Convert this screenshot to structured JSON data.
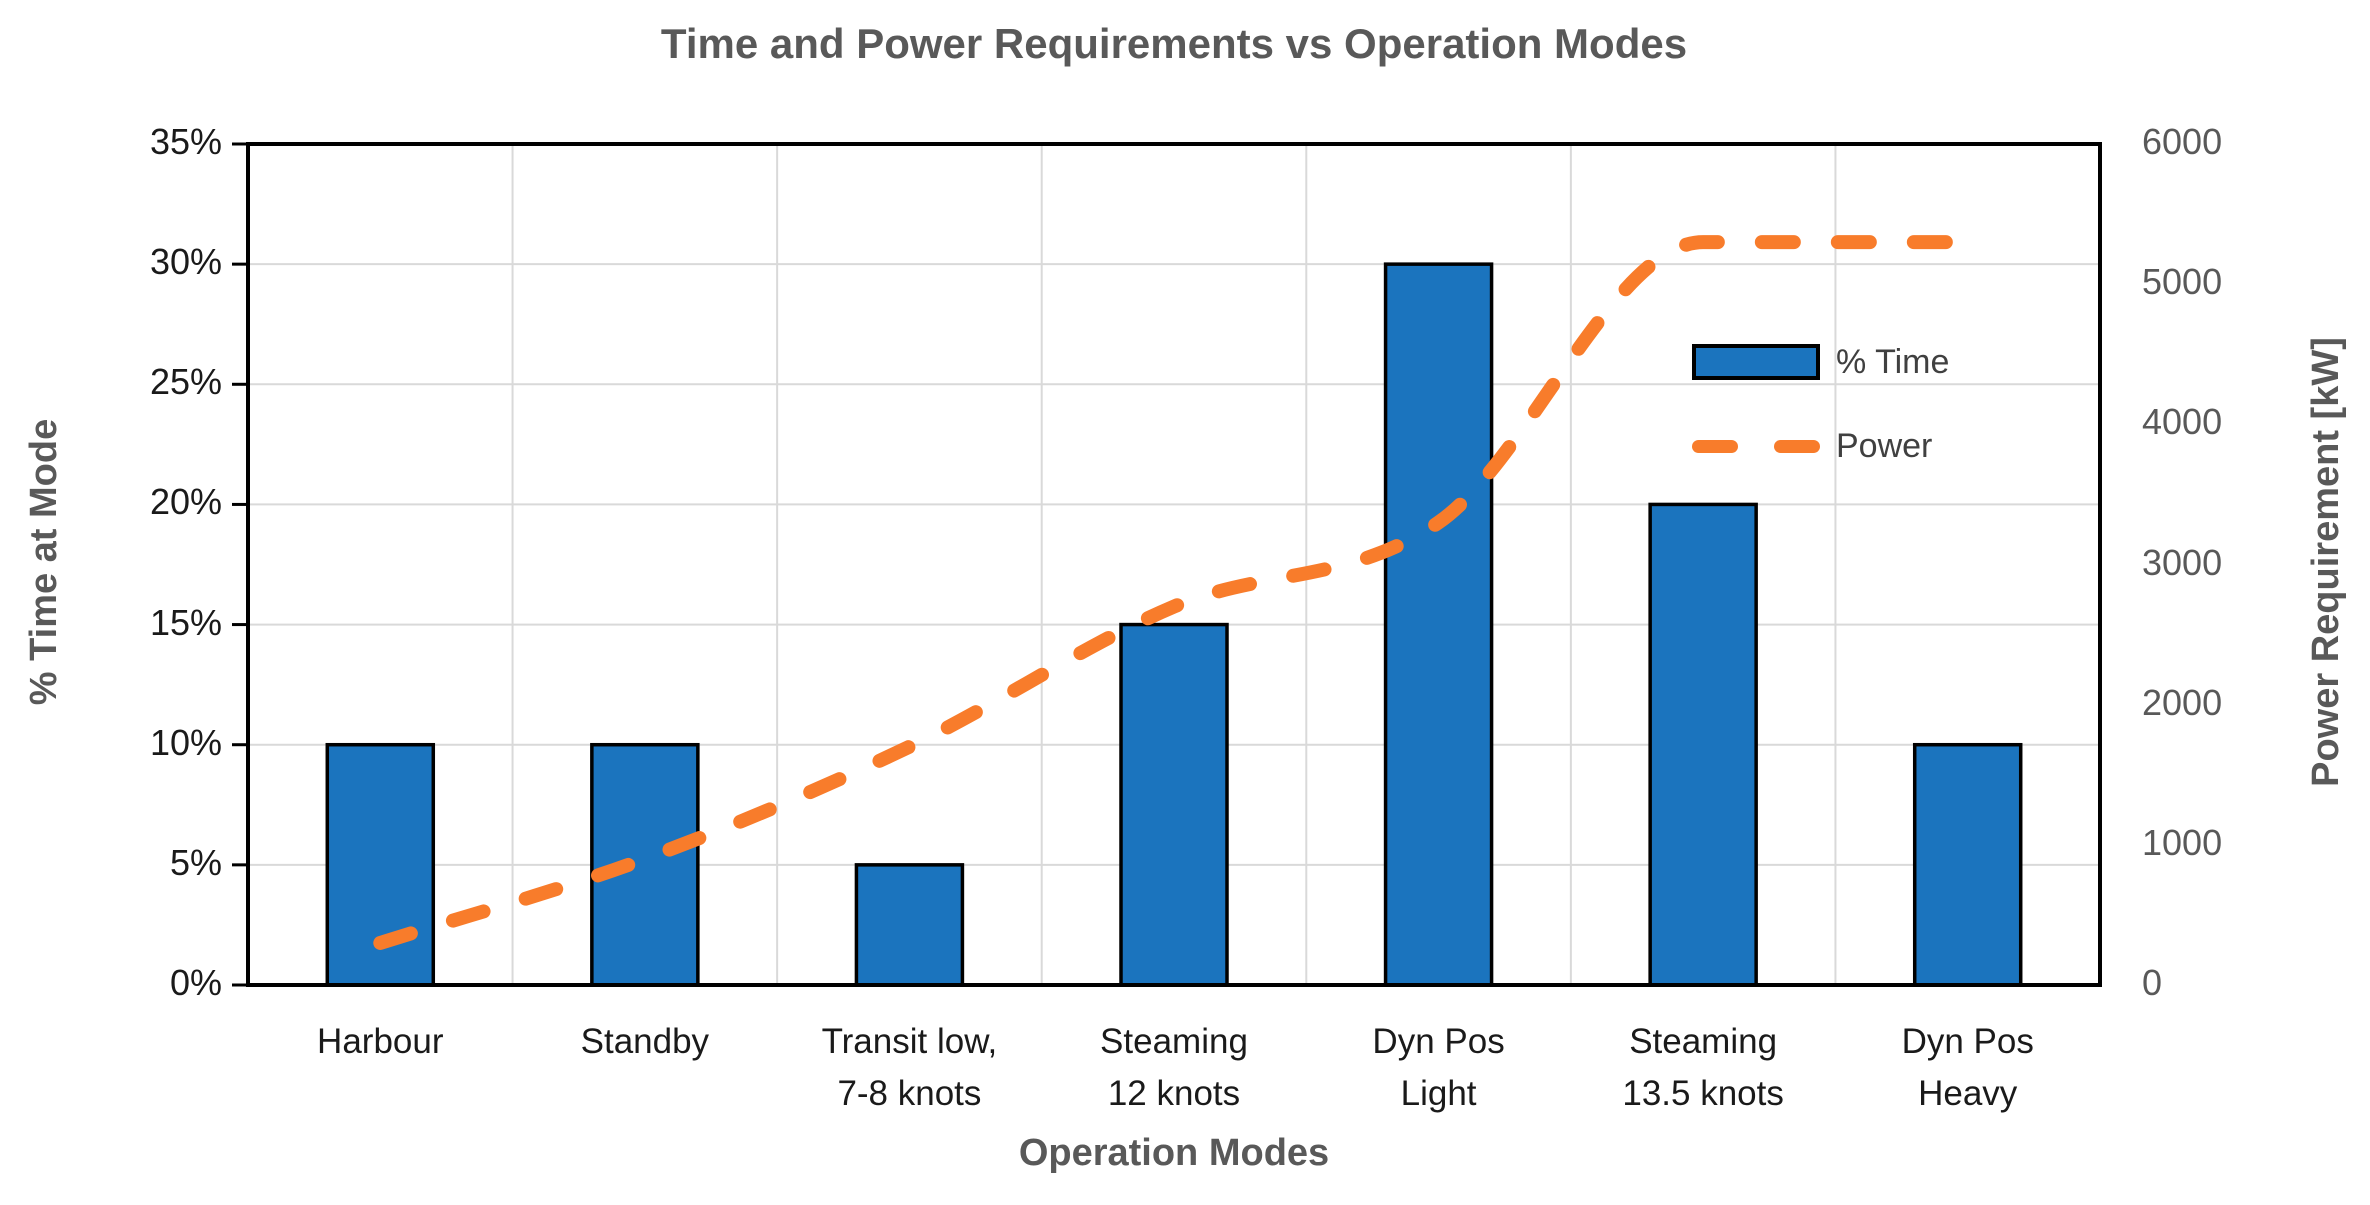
{
  "chart_data": {
    "type": "combo-bar-line",
    "title": "Time and Power Requirements vs Operation Modes",
    "xlabel": "Operation Modes",
    "ylabel_left": "% Time at Mode",
    "ylabel_right": "Power Requirement [kW]",
    "categories": [
      "Harbour",
      "Standby",
      "Transit low, 7-8 knots",
      "Steaming 12 knots",
      "Dyn Pos Light",
      "Steaming 13.5 knots",
      "Dyn Pos Heavy"
    ],
    "category_label_lines": [
      [
        "Harbour"
      ],
      [
        "Standby"
      ],
      [
        "Transit low,",
        "7-8 knots"
      ],
      [
        "Steaming",
        "12 knots"
      ],
      [
        "Dyn Pos",
        "Light"
      ],
      [
        "Steaming",
        "13.5 knots"
      ],
      [
        "Dyn Pos",
        "Heavy"
      ]
    ],
    "series": [
      {
        "name": "% Time",
        "type": "bar",
        "axis": "left",
        "unit": "%",
        "values": [
          10,
          10,
          5,
          15,
          30,
          20,
          10
        ],
        "fill_color": "#1B74BE",
        "border_color": "#000000"
      },
      {
        "name": "Power",
        "type": "line",
        "axis": "right",
        "unit": "kW",
        "values": [
          300,
          900,
          1700,
          2700,
          3300,
          5300,
          5300
        ],
        "color": "#F87C2B",
        "dashed": true,
        "smooth": true
      }
    ],
    "y_left_axis": {
      "min": 0,
      "max": 35,
      "step": 5,
      "tick_suffix": "%",
      "tick_labels": [
        "0%",
        "5%",
        "10%",
        "15%",
        "20%",
        "25%",
        "30%",
        "35%"
      ]
    },
    "y_right_axis": {
      "min": 0,
      "max": 6000,
      "step": 1000,
      "tick_labels": [
        "0",
        "1000",
        "2000",
        "3000",
        "4000",
        "5000",
        "6000"
      ]
    },
    "grid": true,
    "legend": {
      "position": "inside-right",
      "items": [
        "% Time",
        "Power"
      ]
    },
    "colors": {
      "grid": "#D9D9D9",
      "plot_border": "#000000",
      "title_text": "#595959",
      "axis_title_text": "#595959",
      "left_tick_text": "#1A1A1A",
      "right_tick_text": "#595959",
      "category_text": "#1A1A1A",
      "legend_text": "#404040"
    }
  }
}
